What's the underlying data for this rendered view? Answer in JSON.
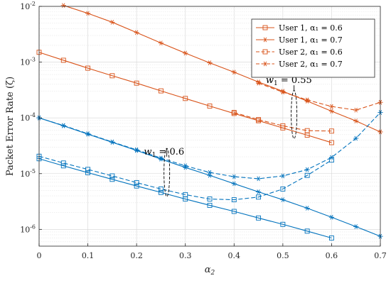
{
  "chart_data": {
    "type": "line",
    "title": "",
    "xlabel": "α₂",
    "ylabel": "Packet Error Rate (ζ)",
    "xlim": [
      0,
      0.7
    ],
    "ylim": [
      5e-07,
      0.01
    ],
    "yscale": "log",
    "x_ticks": [
      "0",
      "0.1",
      "0.2",
      "0.3",
      "0.4",
      "0.5",
      "0.6",
      "0.7"
    ],
    "y_ticks": [
      {
        "base": "10",
        "exp": "-6"
      },
      {
        "base": "10",
        "exp": "-5"
      },
      {
        "base": "10",
        "exp": "-4"
      },
      {
        "base": "10",
        "exp": "-3"
      },
      {
        "base": "10",
        "exp": "-2"
      }
    ],
    "grid": true,
    "legend_position": "top-right",
    "colors": {
      "user1": "#D95319",
      "user2": "#0072BD"
    },
    "series": [
      {
        "name": "User 1, α₁ = 0.6",
        "color": "#D95319",
        "line": "solid",
        "marker": "square",
        "x": [
          0,
          0.05,
          0.1,
          0.15,
          0.2,
          0.25,
          0.3,
          0.35,
          0.4,
          0.45,
          0.5,
          0.55,
          0.6
        ],
        "y": [
          0.0015,
          0.00108,
          0.00078,
          0.00057,
          0.00042,
          0.000305,
          0.000223,
          0.000163,
          0.00012,
          8.9e-05,
          6.6e-05,
          4.9e-05,
          3.6e-05
        ]
      },
      {
        "name": "User 1, α₁ = 0.7",
        "color": "#D95319",
        "line": "solid",
        "marker": "asterisk",
        "x": [
          0.05,
          0.1,
          0.15,
          0.2,
          0.25,
          0.3,
          0.35,
          0.4,
          0.45,
          0.5,
          0.55,
          0.6,
          0.65,
          0.7
        ],
        "y": [
          0.0104,
          0.0075,
          0.0052,
          0.0034,
          0.0022,
          0.00145,
          0.00097,
          0.00066,
          0.00044,
          0.0003,
          0.0002,
          0.000132,
          8.8e-05,
          5.6e-05
        ]
      },
      {
        "name": "User 2, α₁ = 0.6",
        "color": "#D95319",
        "line": "dashed",
        "marker": "square",
        "x": [
          0.4,
          0.45,
          0.5,
          0.55,
          0.6
        ],
        "y": [
          0.000125,
          9.3e-05,
          7.2e-05,
          5.9e-05,
          5.8e-05
        ]
      },
      {
        "name": "User 2, α₁ = 0.7",
        "color": "#D95319",
        "line": "dashed",
        "marker": "asterisk",
        "x": [
          0.45,
          0.5,
          0.55,
          0.6,
          0.65,
          0.7
        ],
        "y": [
          0.00042,
          0.00029,
          0.00021,
          0.00016,
          0.000138,
          0.00019
        ]
      },
      {
        "color": "#0072BD",
        "line": "solid",
        "marker": "square",
        "x": [
          0,
          0.05,
          0.1,
          0.15,
          0.2,
          0.25,
          0.3,
          0.35,
          0.4,
          0.45,
          0.5,
          0.55,
          0.6
        ],
        "y": [
          1.85e-05,
          1.38e-05,
          1.04e-05,
          7.9e-06,
          6e-06,
          4.6e-06,
          3.5e-06,
          2.7e-06,
          2.1e-06,
          1.6e-06,
          1.23e-06,
          9.3e-07,
          7e-07
        ]
      },
      {
        "color": "#0072BD",
        "line": "solid",
        "marker": "asterisk",
        "x": [
          0,
          0.05,
          0.1,
          0.15,
          0.2,
          0.25,
          0.3,
          0.35,
          0.4,
          0.45,
          0.5,
          0.55,
          0.6,
          0.65,
          0.7
        ],
        "y": [
          0.0001,
          7.2e-05,
          5.1e-05,
          3.65e-05,
          2.6e-05,
          1.82e-05,
          1.29e-05,
          9.3e-06,
          6.6e-06,
          4.7e-06,
          3.4e-06,
          2.4e-06,
          1.65e-06,
          1.12e-06,
          7.5e-07
        ]
      },
      {
        "color": "#0072BD",
        "line": "dashed",
        "marker": "square",
        "x": [
          0,
          0.05,
          0.1,
          0.15,
          0.2,
          0.25,
          0.3,
          0.35,
          0.4,
          0.45,
          0.5,
          0.55,
          0.6
        ],
        "y": [
          2.05e-05,
          1.55e-05,
          1.19e-05,
          9.1e-06,
          6.9e-06,
          5.3e-06,
          4.2e-06,
          3.5e-06,
          3.4e-06,
          3.8e-06,
          5.3e-06,
          9.3e-06,
          1.75e-05
        ]
      },
      {
        "color": "#0072BD",
        "line": "dashed",
        "marker": "asterisk",
        "x": [
          0,
          0.05,
          0.1,
          0.15,
          0.2,
          0.25,
          0.3,
          0.35,
          0.4,
          0.45,
          0.5,
          0.55,
          0.6,
          0.65,
          0.7
        ],
        "y": [
          0.0001,
          7.3e-05,
          5.2e-05,
          3.7e-05,
          2.68e-05,
          1.9e-05,
          1.38e-05,
          1.05e-05,
          8.8e-06,
          8.1e-06,
          9.1e-06,
          1.18e-05,
          1.95e-05,
          4.3e-05,
          0.000125
        ]
      }
    ],
    "annotations": [
      {
        "base": "w",
        "sub": "1",
        "rest": " = 0.55",
        "label_at": [
          0.465,
          0.00042
        ],
        "ellipse_at": [
          0.523,
          0.000115
        ]
      },
      {
        "base": "w",
        "sub": "1",
        "rest": " = 0.6",
        "label_at": [
          0.215,
          2.2e-05
        ],
        "ellipse_at": [
          0.262,
          1.05e-05
        ]
      }
    ]
  }
}
